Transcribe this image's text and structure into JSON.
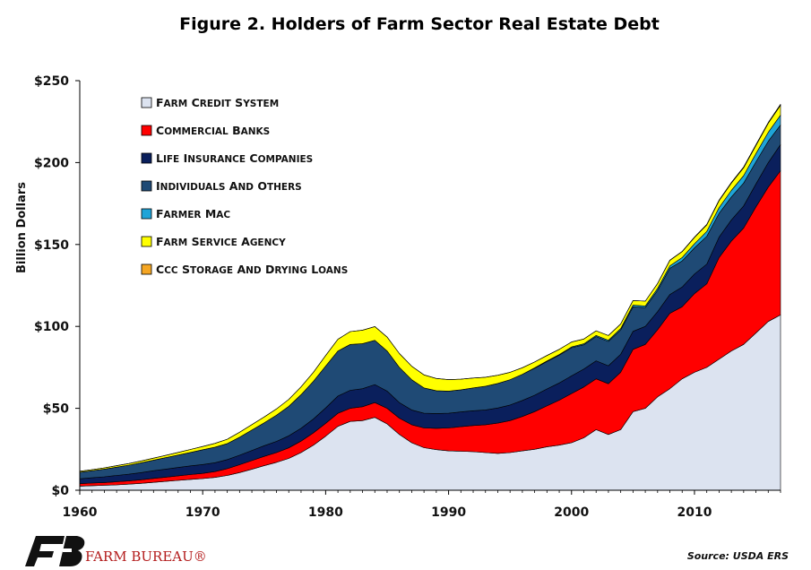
{
  "chart_data": {
    "type": "area",
    "stacked": true,
    "title": "Figure 2. Holders of Farm Sector Real Estate Debt",
    "ylabel": "Billion Dollars",
    "xlabel": "",
    "xlim": [
      1960,
      2017
    ],
    "ylim": [
      0,
      250
    ],
    "xticks": [
      1960,
      1970,
      1980,
      1990,
      2000,
      2010
    ],
    "yticks": [
      0,
      50,
      100,
      150,
      200,
      250
    ],
    "ytick_labels": [
      "$0",
      "$50",
      "$100",
      "$150",
      "$200",
      "$250"
    ],
    "legend_position": "top-left",
    "grid": false,
    "x": [
      1960,
      1961,
      1962,
      1963,
      1964,
      1965,
      1966,
      1967,
      1968,
      1969,
      1970,
      1971,
      1972,
      1973,
      1974,
      1975,
      1976,
      1977,
      1978,
      1979,
      1980,
      1981,
      1982,
      1983,
      1984,
      1985,
      1986,
      1987,
      1988,
      1989,
      1990,
      1991,
      1992,
      1993,
      1994,
      1995,
      1996,
      1997,
      1998,
      1999,
      2000,
      2001,
      2002,
      2003,
      2004,
      2005,
      2006,
      2007,
      2008,
      2009,
      2010,
      2011,
      2012,
      2013,
      2014,
      2015,
      2016,
      2017
    ],
    "series": [
      {
        "name": "Farm Credit System",
        "color": "#dce3f0",
        "values": [
          2.5,
          2.8,
          3,
          3.3,
          3.7,
          4.2,
          4.8,
          5.4,
          6,
          6.6,
          7.1,
          7.8,
          9,
          10.8,
          12.8,
          15,
          17,
          19.4,
          23,
          27.5,
          33,
          39,
          42,
          42.5,
          44.5,
          40.5,
          34,
          29,
          26,
          24.8,
          24,
          23.8,
          23.5,
          23,
          22.5,
          23,
          24,
          25,
          26.5,
          27.5,
          29,
          32,
          37,
          34,
          37,
          48,
          50,
          57,
          62,
          68,
          72,
          75,
          80,
          85,
          89,
          96,
          103,
          107
        ]
      },
      {
        "name": "Commercial Banks",
        "color": "#ff0000",
        "values": [
          1.5,
          1.6,
          1.7,
          1.9,
          2,
          2.2,
          2.4,
          2.6,
          2.8,
          3,
          3.2,
          3.6,
          4.2,
          4.8,
          5.3,
          5.7,
          6,
          6.5,
          7,
          7.5,
          7.8,
          8,
          8,
          8.5,
          9,
          9.5,
          10,
          11,
          12,
          13,
          14,
          15,
          16,
          17,
          18.5,
          19.5,
          21,
          23,
          25,
          27.5,
          30,
          31,
          31,
          31,
          35,
          38,
          39,
          41,
          46,
          44,
          48,
          51,
          62,
          67,
          71,
          77,
          82,
          88
        ]
      },
      {
        "name": "Life Insurance Companies",
        "color": "#0a1f5c",
        "values": [
          3,
          3.2,
          3.5,
          3.8,
          4.1,
          4.4,
          4.7,
          4.9,
          5.1,
          5.3,
          5.4,
          5.4,
          5.5,
          5.8,
          6.2,
          6.5,
          6.8,
          7.3,
          7.8,
          8.5,
          9.5,
          10.5,
          11,
          11,
          11,
          10.5,
          9.5,
          9,
          9,
          9,
          9,
          9,
          9,
          9,
          9.2,
          9.5,
          9.8,
          10,
          10.3,
          10.5,
          10.8,
          11,
          11,
          11,
          11,
          11,
          11,
          11,
          11.5,
          12,
          12,
          12,
          12.5,
          13,
          13.5,
          14,
          15,
          16
        ]
      },
      {
        "name": "Individuals and Others",
        "color": "#1f4a75",
        "values": [
          4,
          4.3,
          4.7,
          5.1,
          5.5,
          6,
          6.5,
          7,
          7.6,
          8.2,
          9,
          9.5,
          9.8,
          11,
          12.5,
          14,
          16,
          18,
          20.5,
          23,
          25.5,
          27.5,
          28,
          27.5,
          27,
          24.5,
          21.5,
          18.5,
          15.5,
          14,
          13.5,
          13.5,
          14,
          14.5,
          15,
          15.5,
          16,
          16.5,
          16.8,
          17,
          17.2,
          14.8,
          14.8,
          14.8,
          14.8,
          15,
          11.5,
          13,
          16,
          16,
          16,
          17,
          14.5,
          14,
          14,
          13.5,
          13,
          12
        ]
      },
      {
        "name": "Farmer Mac",
        "color": "#1fa4d8",
        "values": [
          0,
          0,
          0,
          0,
          0,
          0,
          0,
          0,
          0,
          0,
          0,
          0,
          0,
          0,
          0,
          0,
          0,
          0,
          0,
          0,
          0,
          0,
          0,
          0,
          0,
          0,
          0,
          0,
          0,
          0,
          0,
          0,
          0,
          0,
          0,
          0,
          0,
          0.2,
          0.3,
          0.4,
          0.5,
          0.6,
          0.7,
          0.8,
          0.9,
          1,
          1,
          1.2,
          1.5,
          2,
          2.5,
          3,
          3.5,
          4,
          4.5,
          5,
          5.5,
          6
        ]
      },
      {
        "name": "Farm Service Agency",
        "color": "#ffff00",
        "values": [
          0.6,
          0.7,
          0.8,
          0.9,
          1,
          1.1,
          1.2,
          1.4,
          1.6,
          1.8,
          2,
          2.3,
          2.6,
          3,
          3.3,
          3.5,
          3.8,
          4.2,
          4.8,
          5.5,
          6.4,
          7.2,
          7.8,
          8.2,
          8.4,
          8.5,
          8.4,
          8.2,
          7.9,
          7.4,
          7,
          6.5,
          6,
          5.5,
          5,
          4.5,
          4,
          3.6,
          3.3,
          3.1,
          3,
          2.9,
          2.8,
          2.8,
          2.8,
          2.8,
          2.9,
          3,
          3.3,
          3.6,
          3.8,
          4,
          4.2,
          4.5,
          4.8,
          5,
          5.5,
          6
        ]
      },
      {
        "name": "CCC Storage and Drying Loans",
        "color": "#f5a623",
        "values": [
          0,
          0,
          0,
          0,
          0,
          0,
          0,
          0,
          0,
          0,
          0,
          0,
          0,
          0,
          0,
          0,
          0,
          0,
          0,
          0,
          0,
          0,
          0,
          0,
          0,
          0,
          0,
          0,
          0,
          0,
          0,
          0,
          0,
          0,
          0,
          0,
          0,
          0,
          0,
          0,
          0,
          0,
          0,
          0,
          0,
          0,
          0,
          0,
          0.2,
          0.2,
          0.3,
          0.3,
          0.4,
          0.4,
          0.5,
          0.5,
          0.5,
          0.6
        ]
      }
    ]
  },
  "footer": {
    "brand": "FARM BUREAU®",
    "source": "Source: USDA ERS"
  }
}
